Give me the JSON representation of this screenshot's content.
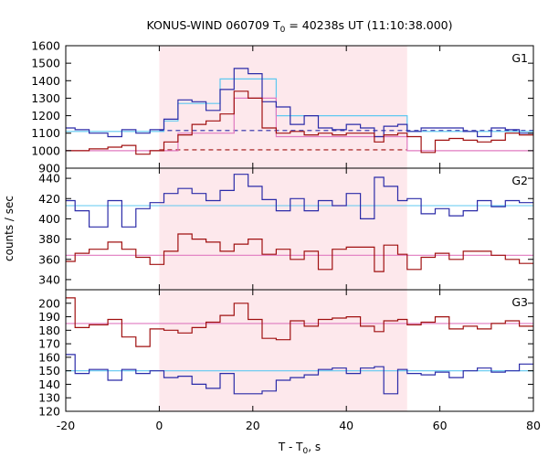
{
  "chart_data": {
    "type": "line",
    "title": "KONUS-WIND 060709 T",
    "title_sub": "0",
    "title_rest": " = 40238s UT (11:10:38.000)",
    "xlabel": "T - T",
    "xlabel_sub": "0",
    "xlabel_rest": ", s",
    "ylabel": "counts / sec",
    "xlim": [
      -20,
      80
    ],
    "xticks": [
      -20,
      0,
      20,
      40,
      60,
      80
    ],
    "highlight_interval": [
      0,
      53
    ],
    "colors": {
      "dark_blue": "#2b2ba8",
      "dark_red": "#a01010",
      "light_blue": "#5fc8f0",
      "pink": "#e07ac0",
      "highlight": "#fde8ec"
    },
    "bin_edges": [
      -20,
      -18,
      -15,
      -11,
      -8,
      -5,
      -2,
      1,
      4,
      7,
      10,
      13,
      16,
      19,
      22,
      25,
      28,
      31,
      34,
      37,
      40,
      43,
      46,
      48,
      51,
      53,
      56,
      59,
      62,
      65,
      68,
      71,
      74,
      77,
      80
    ],
    "panels": [
      {
        "label": "G1",
        "ylim": [
          900,
          1600
        ],
        "yticks": [
          900,
          1000,
          1100,
          1200,
          1300,
          1400,
          1500,
          1600
        ],
        "series": [
          {
            "color": "dark_blue",
            "step": true,
            "values": [
              1130,
              1120,
              1100,
              1080,
              1120,
              1100,
              1120,
              1180,
              1290,
              1280,
              1230,
              1350,
              1470,
              1440,
              1280,
              1250,
              1150,
              1200,
              1130,
              1120,
              1150,
              1130,
              1080,
              1140,
              1150,
              1110,
              1130,
              1130,
              1130,
              1110,
              1080,
              1130,
              1120,
              1100
            ]
          },
          {
            "color": "dark_red",
            "step": true,
            "values": [
              1000,
              1000,
              1010,
              1020,
              1030,
              980,
              1000,
              1050,
              1090,
              1150,
              1170,
              1210,
              1340,
              1300,
              1130,
              1100,
              1110,
              1090,
              1100,
              1090,
              1100,
              1100,
              1050,
              1090,
              1100,
              1080,
              990,
              1060,
              1070,
              1060,
              1050,
              1060,
              1100,
              1090
            ]
          },
          {
            "color": "light_blue",
            "step": true,
            "values": [
              1110,
              1110,
              1110,
              1110,
              1110,
              1110,
              1110,
              1170,
              1270,
              1270,
              1270,
              1410,
              1410,
              1410,
              1410,
              1200,
              1200,
              1200,
              1200,
              1200,
              1200,
              1200,
              1200,
              1200,
              1200,
              1110,
              1110,
              1110,
              1110,
              1110,
              1110,
              1110,
              1110,
              1110
            ]
          },
          {
            "color": "pink",
            "step": true,
            "values": [
              1000,
              1000,
              1000,
              1000,
              1000,
              1000,
              1000,
              1000,
              1100,
              1100,
              1100,
              1100,
              1300,
              1300,
              1300,
              1080,
              1080,
              1080,
              1080,
              1080,
              1080,
              1080,
              1080,
              1080,
              1080,
              1000,
              1000,
              1000,
              1000,
              1000,
              1000,
              1000,
              1000,
              1000
            ]
          }
        ],
        "reference_lines": [
          {
            "color": "dark_blue",
            "dashed": true,
            "value": 1115,
            "x": [
              0,
              80
            ]
          },
          {
            "color": "dark_red",
            "dashed": true,
            "value": 1005,
            "x": [
              0,
              53
            ]
          }
        ]
      },
      {
        "label": "G2",
        "ylim": [
          330,
          450
        ],
        "yticks": [
          340,
          360,
          380,
          400,
          420,
          440
        ],
        "series": [
          {
            "color": "dark_blue",
            "step": true,
            "values": [
              418,
              408,
              392,
              418,
              392,
              410,
              416,
              425,
              430,
              425,
              418,
              428,
              444,
              432,
              419,
              408,
              420,
              408,
              418,
              413,
              425,
              400,
              441,
              432,
              418,
              420,
              405,
              410,
              403,
              408,
              418,
              412,
              418,
              416
            ]
          },
          {
            "color": "dark_red",
            "step": true,
            "values": [
              358,
              366,
              370,
              377,
              370,
              362,
              355,
              368,
              385,
              380,
              377,
              368,
              375,
              380,
              365,
              370,
              360,
              368,
              350,
              370,
              372,
              372,
              348,
              374,
              365,
              350,
              362,
              366,
              360,
              368,
              368,
              364,
              360,
              356
            ]
          },
          {
            "color": "light_blue",
            "step": false,
            "value": 413,
            "x": [
              -20,
              80
            ]
          },
          {
            "color": "pink",
            "step": false,
            "value": 364,
            "x": [
              -20,
              80
            ]
          }
        ]
      },
      {
        "label": "G3",
        "ylim": [
          120,
          210
        ],
        "yticks": [
          120,
          130,
          140,
          150,
          160,
          170,
          180,
          190,
          200
        ],
        "series": [
          {
            "color": "dark_blue",
            "step": true,
            "values": [
              162,
              148,
              151,
              143,
              151,
              148,
              150,
              145,
              146,
              140,
              137,
              148,
              133,
              133,
              135,
              143,
              145,
              147,
              151,
              152,
              148,
              152,
              153,
              133,
              151,
              148,
              147,
              149,
              145,
              150,
              152,
              149,
              150,
              155
            ]
          },
          {
            "color": "dark_red",
            "step": true,
            "values": [
              204,
              182,
              184,
              188,
              175,
              168,
              181,
              180,
              178,
              182,
              186,
              191,
              200,
              188,
              174,
              173,
              187,
              183,
              188,
              189,
              190,
              183,
              179,
              187,
              188,
              184,
              186,
              190,
              181,
              183,
              181,
              185,
              187,
              183
            ]
          },
          {
            "color": "light_blue",
            "step": false,
            "value": 150,
            "x": [
              -20,
              80
            ]
          },
          {
            "color": "pink",
            "step": false,
            "value": 185,
            "x": [
              -20,
              80
            ]
          }
        ]
      }
    ]
  }
}
